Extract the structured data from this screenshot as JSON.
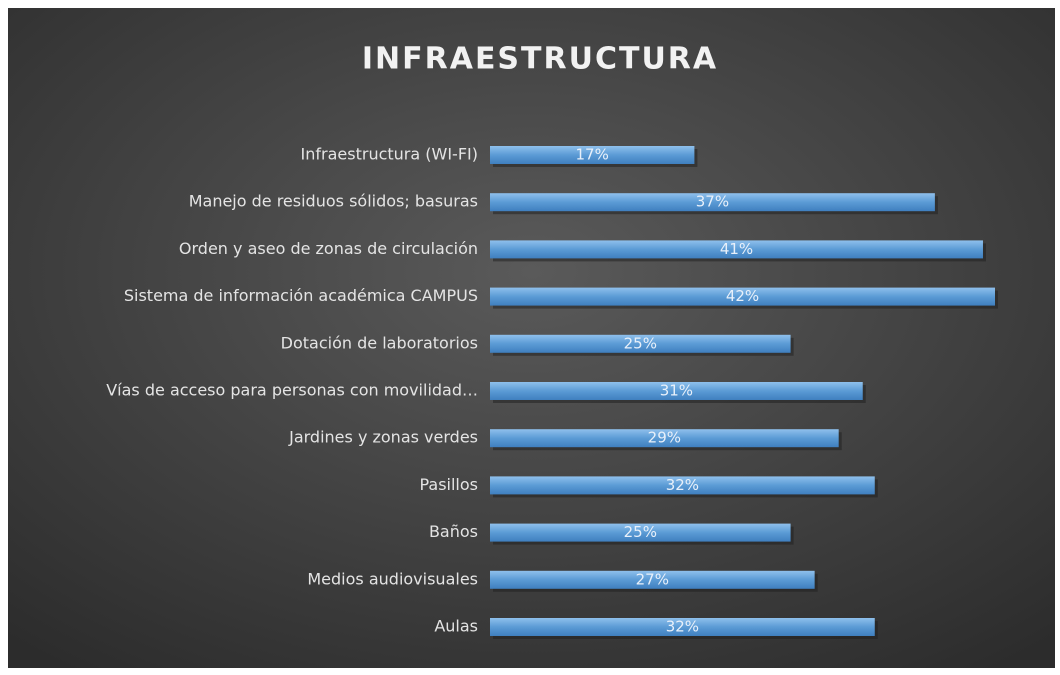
{
  "chart_data": {
    "type": "barh",
    "title": "INFRAESTRUCTURA",
    "categories": [
      "Infraestructura (WI-FI)",
      "Manejo de residuos sólidos; basuras",
      "Orden y aseo de zonas de circulación",
      "Sistema de información académica CAMPUS",
      "Dotación de laboratorios",
      "Vías de acceso para personas con movilidad…",
      "Jardines y zonas verdes",
      "Pasillos",
      "Baños",
      "Medios audiovisuales",
      "Aulas"
    ],
    "values": [
      17,
      37,
      41,
      42,
      25,
      31,
      29,
      32,
      25,
      27,
      32
    ],
    "value_labels": [
      "17%",
      "37%",
      "41%",
      "42%",
      "25%",
      "31%",
      "29%",
      "32%",
      "25%",
      "27%",
      "32%"
    ],
    "color": "#5b9bd5"
  }
}
